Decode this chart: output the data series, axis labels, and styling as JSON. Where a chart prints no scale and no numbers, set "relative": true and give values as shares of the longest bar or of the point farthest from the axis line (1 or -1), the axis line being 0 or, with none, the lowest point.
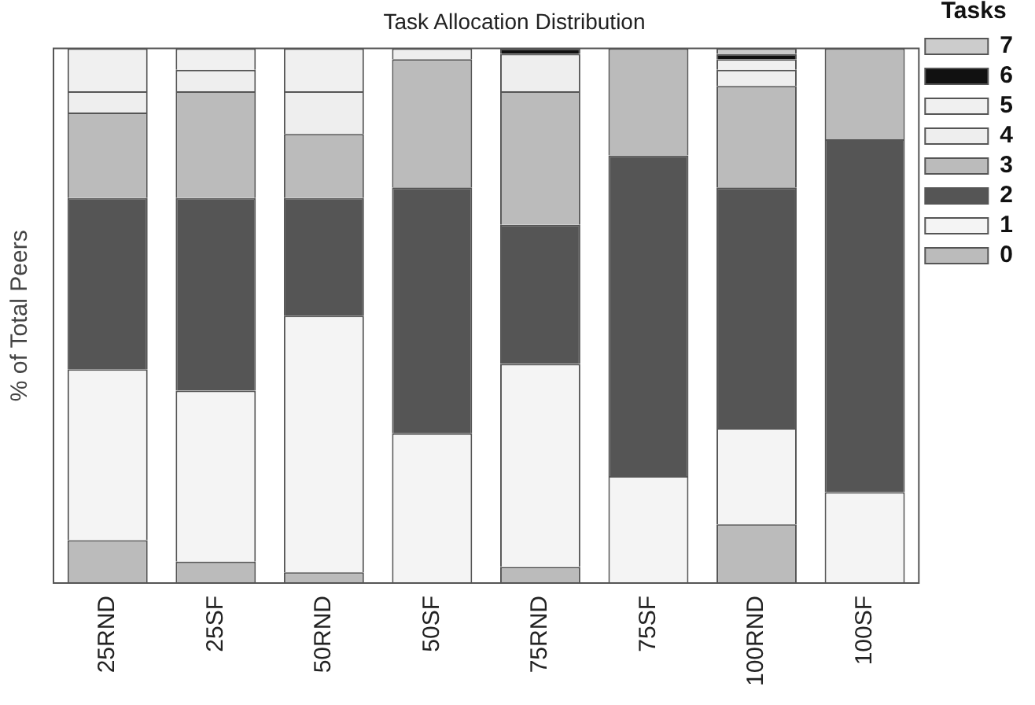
{
  "chart_data": {
    "type": "bar",
    "title": "Task Allocation Distribution",
    "ylabel": "% of Total Peers",
    "legend_title": "Tasks",
    "stacked": true,
    "relative": true,
    "grid": false,
    "legend": "right",
    "categories": [
      "25RND",
      "25SF",
      "50RND",
      "50SF",
      "75RND",
      "75SF",
      "100RND",
      "100SF"
    ],
    "series": [
      {
        "name": "0",
        "color": "#bbbbbb",
        "values": [
          0.08,
          0.04,
          0.02,
          0,
          0.03,
          0,
          0.11,
          0
        ]
      },
      {
        "name": "1",
        "color": "#f4f4f4",
        "values": [
          0.32,
          0.32,
          0.48,
          0.28,
          0.38,
          0.2,
          0.18,
          0.17
        ]
      },
      {
        "name": "2",
        "color": "#555555",
        "values": [
          0.32,
          0.36,
          0.22,
          0.46,
          0.26,
          0.6,
          0.45,
          0.66
        ]
      },
      {
        "name": "3",
        "color": "#bbbbbb",
        "values": [
          0.16,
          0.2,
          0.12,
          0.24,
          0.25,
          0.2,
          0.19,
          0.17
        ]
      },
      {
        "name": "4",
        "color": "#eeeeee",
        "values": [
          0.04,
          0.04,
          0.08,
          0.02,
          0.07,
          0,
          0.03,
          0
        ]
      },
      {
        "name": "5",
        "color": "#f0f0f0",
        "values": [
          0.08,
          0.04,
          0.08,
          0,
          0,
          0,
          0.02,
          0
        ]
      },
      {
        "name": "6",
        "color": "#111111",
        "values": [
          0,
          0,
          0,
          0,
          0.01,
          0,
          0.01,
          0
        ]
      },
      {
        "name": "7",
        "color": "#cccccc",
        "values": [
          0,
          0,
          0,
          0,
          0,
          0,
          0.01,
          0
        ]
      }
    ]
  }
}
